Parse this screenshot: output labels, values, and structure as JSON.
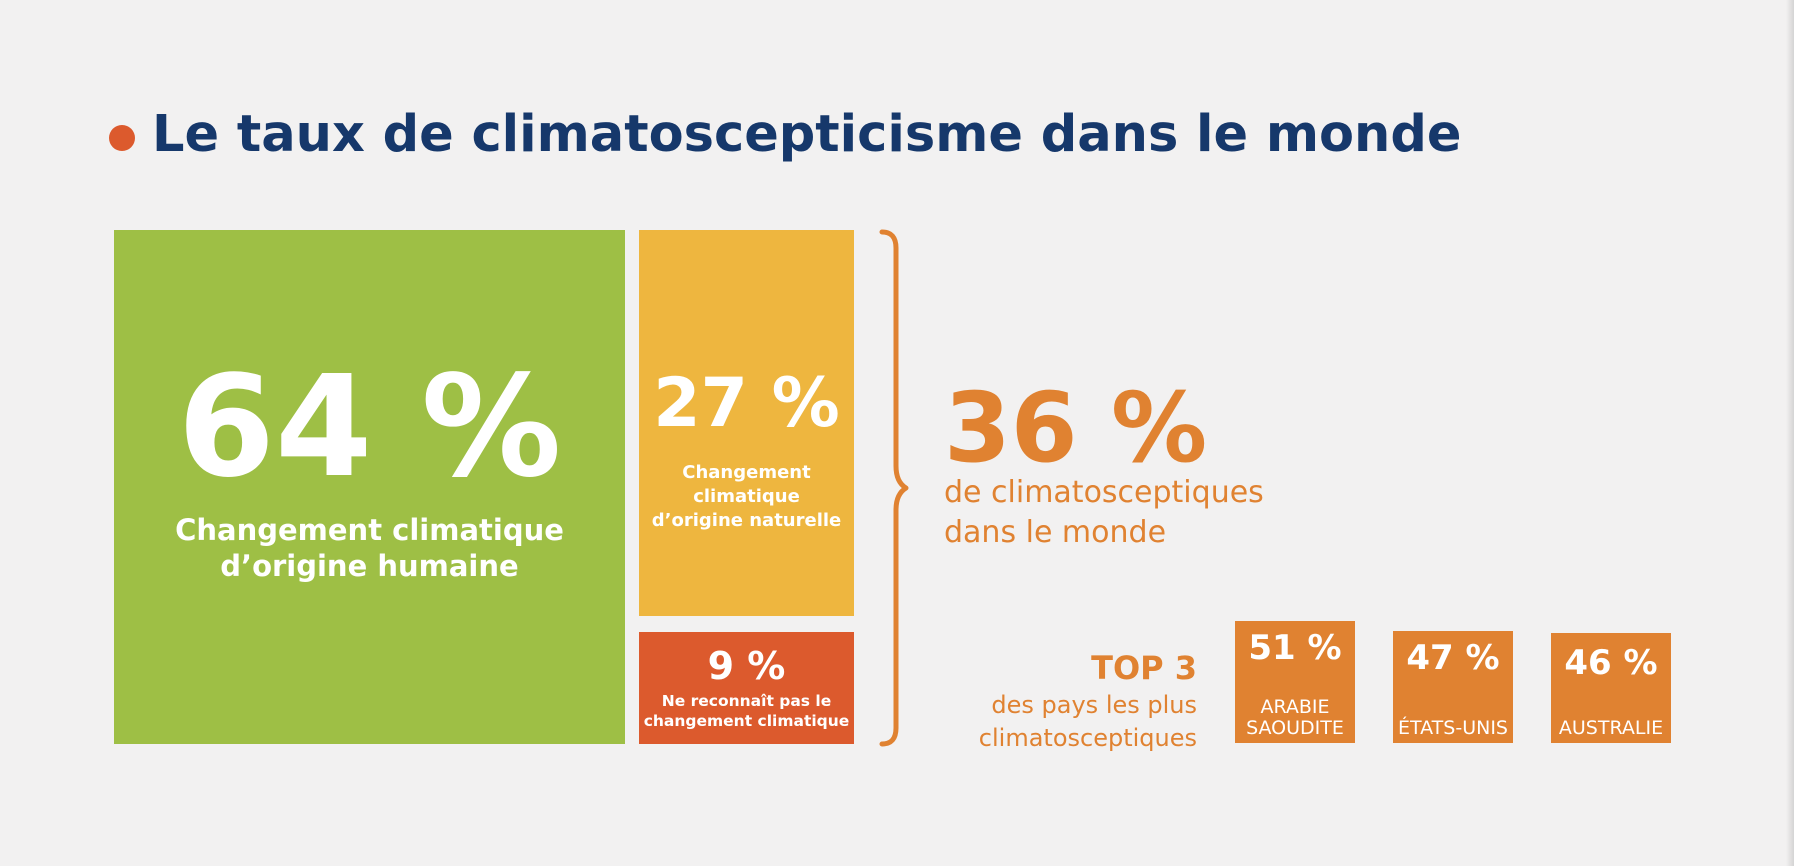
{
  "title": "Le taux de climatoscepticisme dans le monde",
  "colors": {
    "background": "#f2f1f1",
    "title": "#16386b",
    "dot": "#dc5a2d",
    "green": "#9ebf45",
    "yellow": "#eeb63f",
    "red": "#dc5a2d",
    "orange": "#e08231"
  },
  "chart_data": [
    {
      "type": "treemap",
      "title": "Le taux de climatoscepticisme dans le monde",
      "categories": [
        "Changement climatique d’origine humaine",
        "Changement climatique d’origine naturelle",
        "Ne reconnaît pas le changement climatique"
      ],
      "values": [
        64,
        27,
        9
      ],
      "unit": "%",
      "blocks": [
        {
          "value": 64,
          "pct_label": "64 %",
          "label": "Changement climatique d’origine humaine",
          "color": "#9ebf45"
        },
        {
          "value": 27,
          "pct_label": "27 %",
          "label": "Changement climatique d’origine naturelle",
          "color": "#eeb63f"
        },
        {
          "value": 9,
          "pct_label": "9 %",
          "label": "Ne reconnaît pas le changement climatique",
          "color": "#dc5a2d"
        }
      ],
      "bracket": {
        "groups": [
          "Changement climatique d’origine naturelle",
          "Ne reconnaît pas le changement climatique"
        ],
        "value": 36,
        "pct_label": "36 %",
        "label_line1": "de climatosceptiques",
        "label_line2": "dans le monde"
      }
    },
    {
      "type": "bar",
      "title": "TOP 3",
      "subtitle_line1": "des pays les plus",
      "subtitle_line2": "climatosceptiques",
      "categories": [
        "ARABIE SAOUDITE",
        "ÉTATS-UNIS",
        "AUSTRALIE"
      ],
      "values": [
        51,
        47,
        46
      ],
      "unit": "%",
      "items": [
        {
          "value": 51,
          "pct_label": "51 %",
          "name_line1": "ARABIE",
          "name_line2": "SAOUDITE"
        },
        {
          "value": 47,
          "pct_label": "47 %",
          "name_line1": "ÉTATS-UNIS",
          "name_line2": ""
        },
        {
          "value": 46,
          "pct_label": "46 %",
          "name_line1": "AUSTRALIE",
          "name_line2": ""
        }
      ]
    }
  ]
}
